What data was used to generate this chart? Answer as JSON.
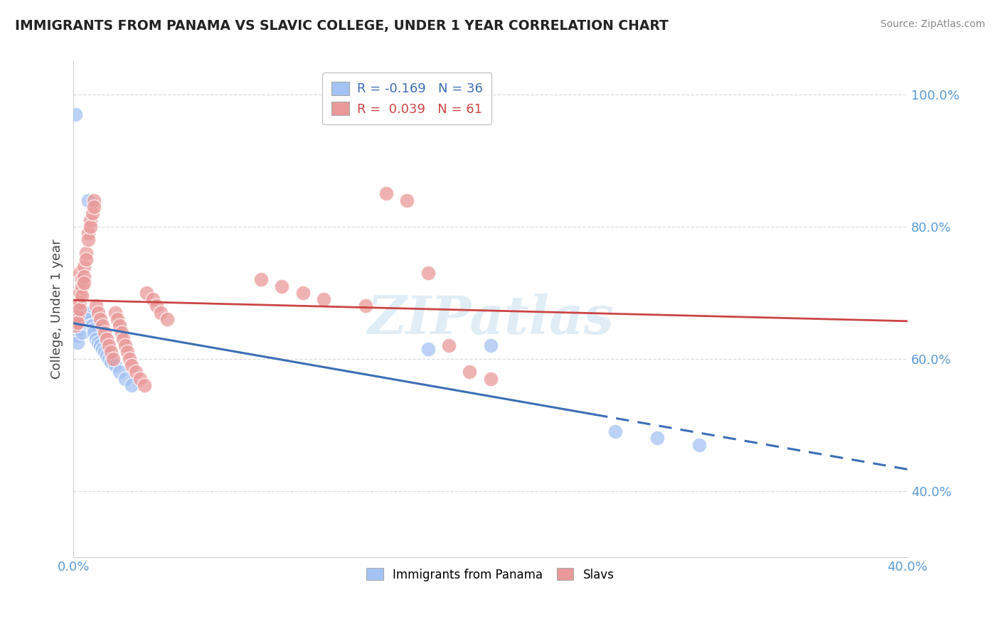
{
  "title": "IMMIGRANTS FROM PANAMA VS SLAVIC COLLEGE, UNDER 1 YEAR CORRELATION CHART",
  "source": "Source: ZipAtlas.com",
  "ylabel": "College, Under 1 year",
  "xmin": 0.0,
  "xmax": 0.4,
  "ymin": 0.3,
  "ymax": 1.05,
  "legend_blue_r": "R = -0.169",
  "legend_blue_n": "N = 36",
  "legend_pink_r": "R =  0.039",
  "legend_pink_n": "N = 61",
  "blue_color": "#a4c2f4",
  "pink_color": "#ea9999",
  "blue_line_color": "#3d6eb5",
  "pink_line_color": "#cc4444",
  "watermark": "ZIPatlas",
  "blue_scatter_x": [
    0.001,
    0.001,
    0.002,
    0.002,
    0.002,
    0.003,
    0.003,
    0.003,
    0.004,
    0.004,
    0.005,
    0.005,
    0.006,
    0.006,
    0.007,
    0.008,
    0.009,
    0.01,
    0.01,
    0.011,
    0.012,
    0.013,
    0.014,
    0.015,
    0.016,
    0.017,
    0.018,
    0.02,
    0.022,
    0.025,
    0.028,
    0.17,
    0.2,
    0.26,
    0.28,
    0.3
  ],
  "blue_scatter_y": [
    0.97,
    0.635,
    0.635,
    0.64,
    0.625,
    0.66,
    0.655,
    0.645,
    0.65,
    0.64,
    0.66,
    0.655,
    0.67,
    0.66,
    0.84,
    0.65,
    0.65,
    0.645,
    0.64,
    0.63,
    0.625,
    0.62,
    0.615,
    0.61,
    0.605,
    0.6,
    0.595,
    0.59,
    0.58,
    0.57,
    0.56,
    0.615,
    0.62,
    0.49,
    0.48,
    0.47
  ],
  "pink_scatter_x": [
    0.001,
    0.001,
    0.002,
    0.002,
    0.002,
    0.003,
    0.003,
    0.003,
    0.003,
    0.004,
    0.004,
    0.004,
    0.005,
    0.005,
    0.005,
    0.006,
    0.006,
    0.007,
    0.007,
    0.008,
    0.008,
    0.009,
    0.01,
    0.01,
    0.011,
    0.012,
    0.013,
    0.014,
    0.015,
    0.016,
    0.017,
    0.018,
    0.019,
    0.02,
    0.021,
    0.022,
    0.023,
    0.024,
    0.025,
    0.026,
    0.027,
    0.028,
    0.03,
    0.032,
    0.034,
    0.035,
    0.038,
    0.04,
    0.042,
    0.045,
    0.09,
    0.1,
    0.11,
    0.12,
    0.14,
    0.15,
    0.16,
    0.17,
    0.18,
    0.19,
    0.2
  ],
  "pink_scatter_y": [
    0.67,
    0.65,
    0.68,
    0.665,
    0.655,
    0.73,
    0.7,
    0.685,
    0.675,
    0.72,
    0.71,
    0.695,
    0.74,
    0.725,
    0.715,
    0.76,
    0.75,
    0.79,
    0.78,
    0.81,
    0.8,
    0.82,
    0.84,
    0.83,
    0.68,
    0.67,
    0.66,
    0.65,
    0.64,
    0.63,
    0.62,
    0.61,
    0.6,
    0.67,
    0.66,
    0.65,
    0.64,
    0.63,
    0.62,
    0.61,
    0.6,
    0.59,
    0.58,
    0.57,
    0.56,
    0.7,
    0.69,
    0.68,
    0.67,
    0.66,
    0.72,
    0.71,
    0.7,
    0.69,
    0.68,
    0.85,
    0.84,
    0.73,
    0.62,
    0.58,
    0.57
  ],
  "ytick_positions": [
    0.4,
    0.6,
    0.8,
    1.0
  ],
  "ytick_labels": [
    "40.0%",
    "60.0%",
    "80.0%",
    "100.0%"
  ],
  "grid_color": "#dddddd",
  "blue_line_solid_end": 0.25,
  "blue_line_start": 0.0,
  "blue_line_end": 0.4
}
